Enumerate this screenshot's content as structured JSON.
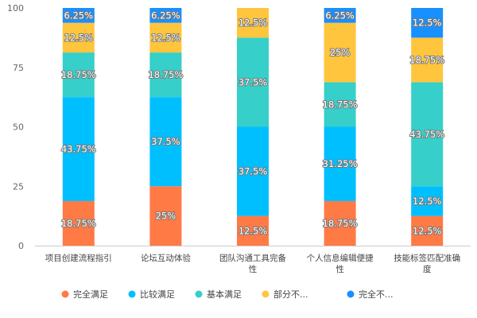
{
  "chart_data": {
    "type": "bar",
    "stacked": true,
    "categories": [
      [
        "项目创建流程指引"
      ],
      [
        "论坛互动体验"
      ],
      [
        "团队沟通工具完备",
        "性"
      ],
      [
        "个人信息编辑便捷",
        "性"
      ],
      [
        "技能标签匹配准确",
        "度"
      ]
    ],
    "series": [
      {
        "name": "完全满足",
        "color": "#ff7a45",
        "values": [
          18.75,
          25,
          12.5,
          18.75,
          12.5
        ]
      },
      {
        "name": "比较满足",
        "color": "#00bfff",
        "values": [
          43.75,
          37.5,
          37.5,
          31.25,
          12.5
        ]
      },
      {
        "name": "基本满足",
        "color": "#36cfc9",
        "values": [
          18.75,
          18.75,
          37.5,
          18.75,
          43.75
        ]
      },
      {
        "name": "部分不...",
        "color": "#ffc53d",
        "values": [
          12.5,
          12.5,
          12.5,
          25,
          18.75
        ]
      },
      {
        "name": "完全不...",
        "color": "#1890ff",
        "values": [
          6.25,
          6.25,
          0,
          6.25,
          12.5
        ]
      }
    ],
    "ylim": [
      0,
      100
    ],
    "yticks": [
      0,
      25,
      50,
      75,
      100
    ],
    "grid": false,
    "legend": "bottom"
  }
}
